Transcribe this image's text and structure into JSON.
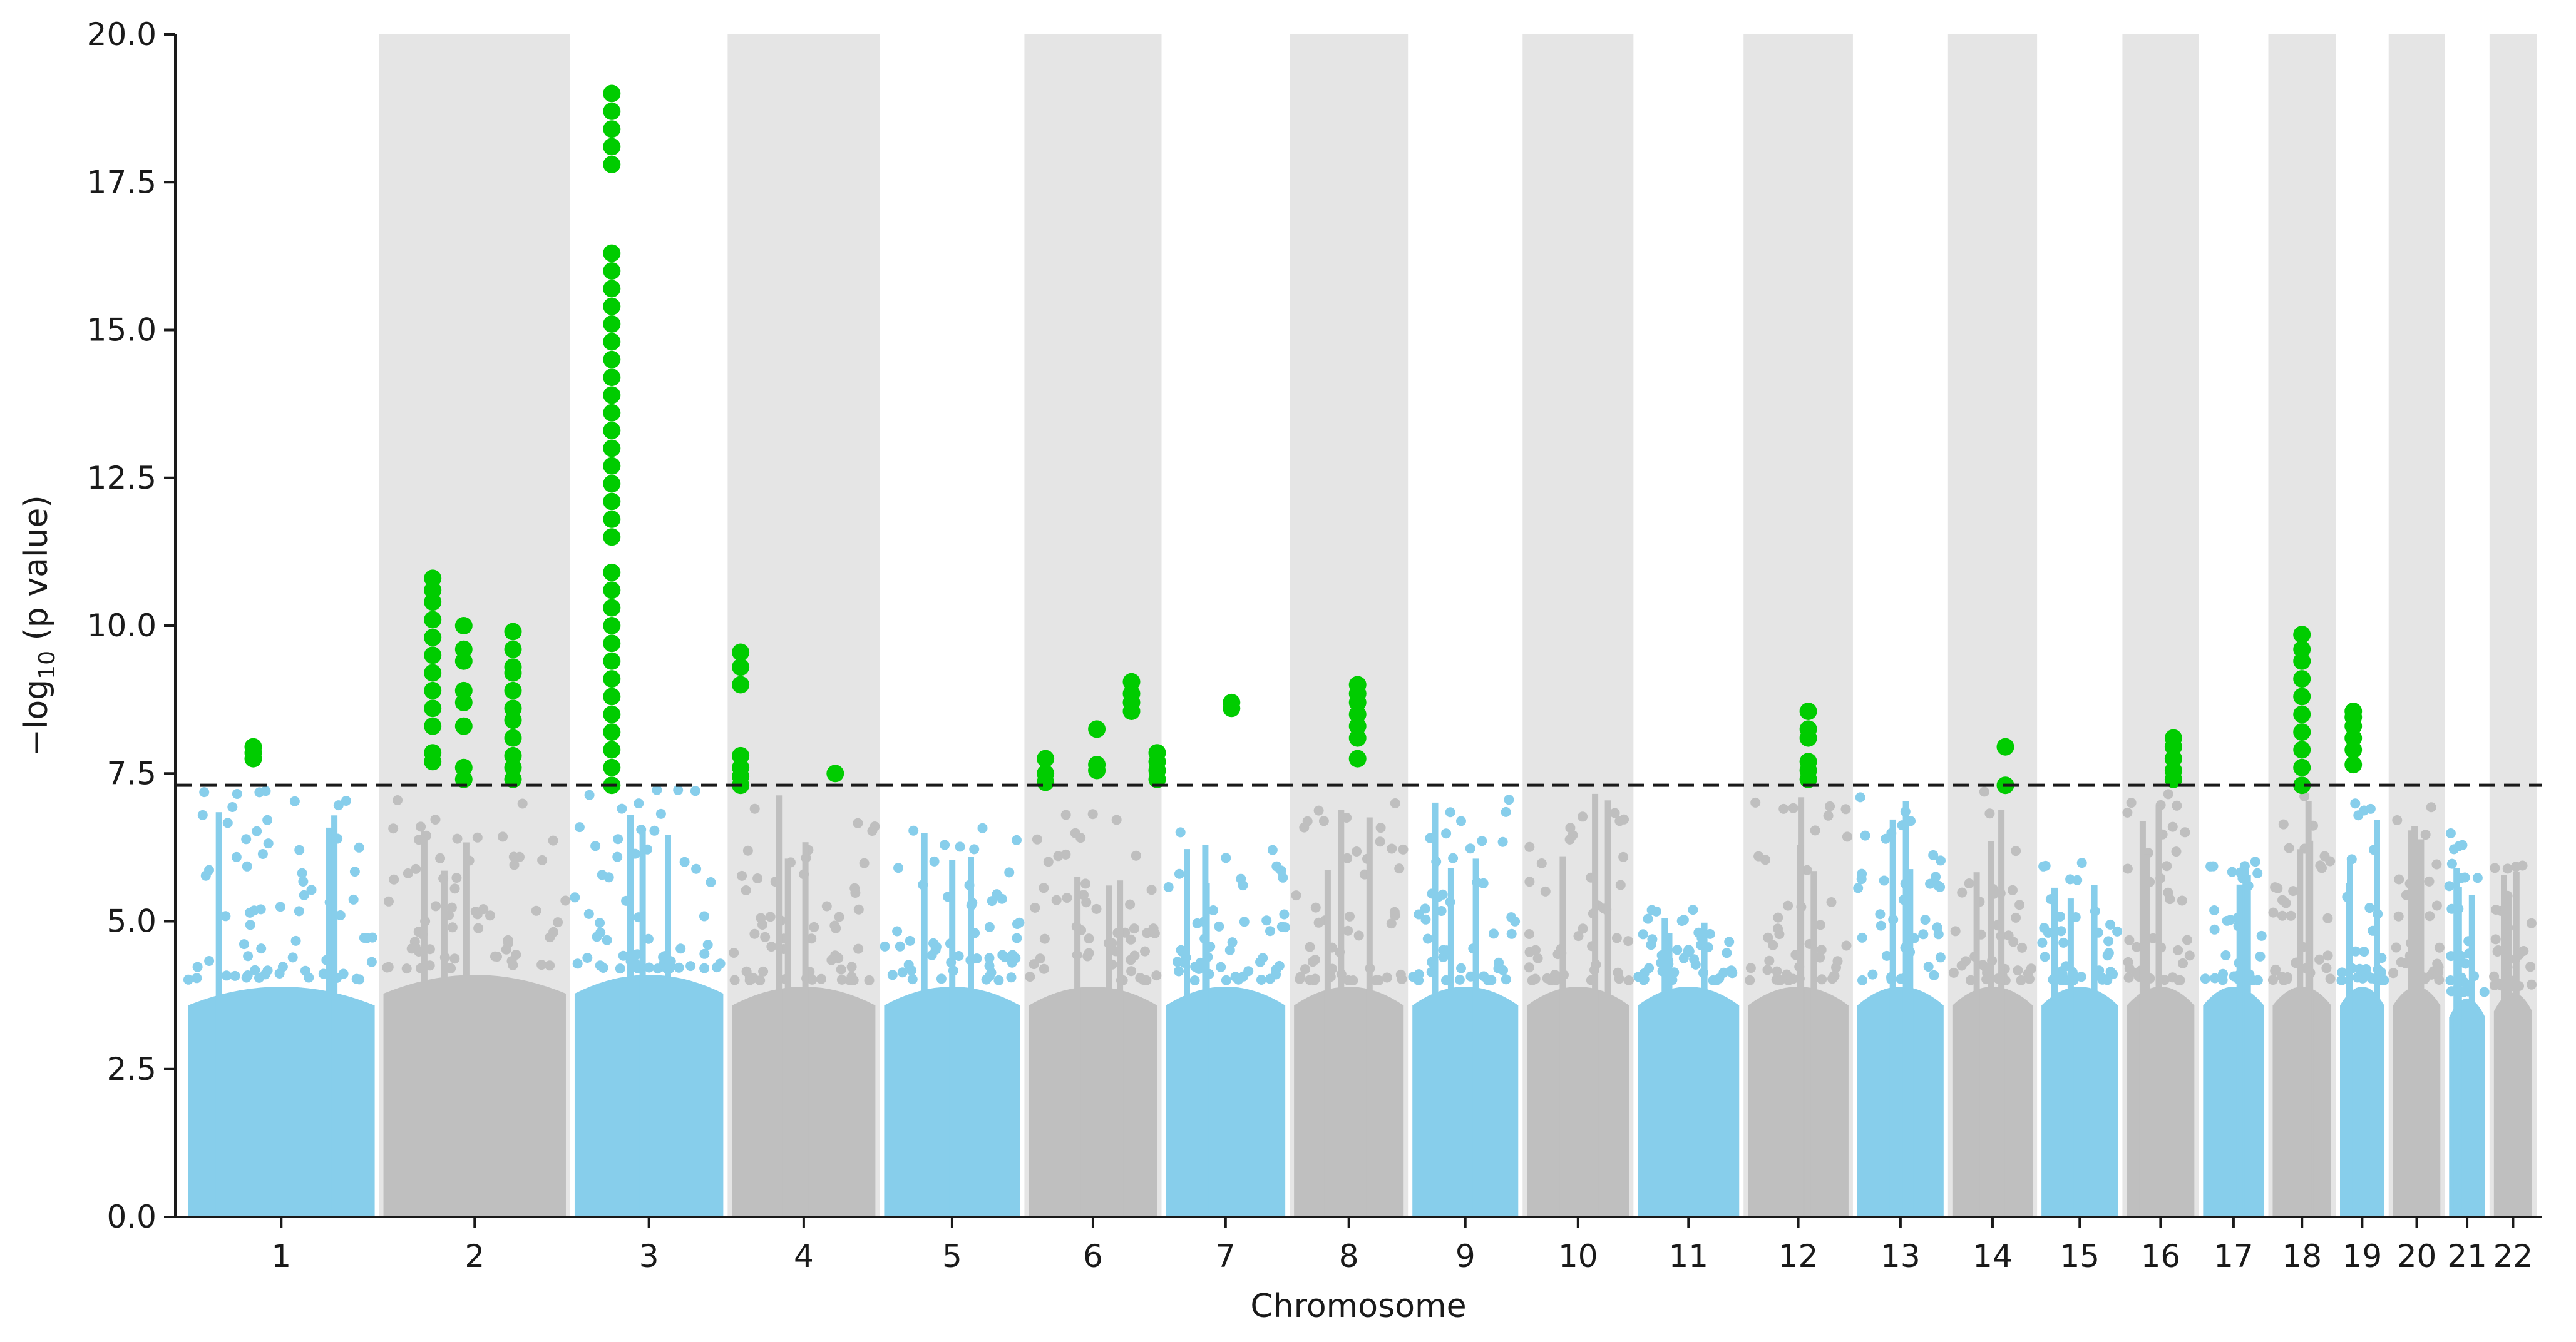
{
  "chart_data": {
    "type": "scatter",
    "subtype": "manhattan",
    "title": "",
    "xlabel": "Chromosome",
    "ylabel": "−log₁₀ (p value)",
    "ylim": [
      0,
      20
    ],
    "yticks": [
      "0.0",
      "2.5",
      "5.0",
      "7.5",
      "10.0",
      "12.5",
      "15.0",
      "17.5",
      "20.0"
    ],
    "grid": false,
    "legend": "none",
    "significance_threshold": 7.3,
    "threshold_style": "dashed black line",
    "colors": {
      "odd_chromosome": "#87ceeb",
      "even_chromosome": "#bfbfbf",
      "significant": "#00cc00",
      "even_band": "#e5e5e5",
      "threshold": "#1a1a1a"
    },
    "chromosomes": [
      {
        "label": "1",
        "length": 249,
        "bulk_max": 4.0,
        "peak_max": 7.3,
        "hits": [
          {
            "pos": 0.35,
            "values": [
              7.75,
              7.85,
              7.95
            ]
          }
        ]
      },
      {
        "label": "2",
        "length": 243,
        "bulk_max": 4.2,
        "peak_max": 7.2,
        "hits": [
          {
            "pos": 0.27,
            "values": [
              7.7,
              7.85,
              8.3,
              8.6,
              8.9,
              9.2,
              9.5,
              9.8,
              10.1,
              10.4,
              10.6,
              10.8
            ]
          },
          {
            "pos": 0.44,
            "values": [
              7.4,
              7.6,
              8.3,
              8.7,
              8.9,
              9.4,
              9.6,
              10.0
            ]
          },
          {
            "pos": 0.71,
            "values": [
              7.4,
              7.6,
              7.8,
              8.1,
              8.4,
              8.6,
              8.9,
              9.2,
              9.3,
              9.6,
              9.9
            ]
          }
        ]
      },
      {
        "label": "3",
        "length": 198,
        "bulk_max": 4.2,
        "peak_max": 7.3,
        "hits": [
          {
            "pos": 0.25,
            "values": [
              7.3,
              7.6,
              7.9,
              8.2,
              8.5,
              8.8,
              9.1,
              9.4,
              9.7,
              10.0,
              10.3,
              10.6,
              10.9,
              11.5,
              11.8,
              12.1,
              12.4,
              12.7,
              13.0,
              13.3,
              13.6,
              13.9,
              14.2,
              14.5,
              14.8,
              15.1,
              15.4,
              15.7,
              16.0,
              16.3,
              17.8,
              18.1,
              18.4,
              18.7,
              19.0
            ]
          }
        ]
      },
      {
        "label": "4",
        "length": 191,
        "bulk_max": 4.0,
        "peak_max": 7.2,
        "hits": [
          {
            "pos": 0.06,
            "values": [
              7.3,
              7.45,
              7.6,
              7.8,
              9.0,
              9.3,
              9.55
            ]
          },
          {
            "pos": 0.72,
            "values": [
              7.5
            ]
          }
        ]
      },
      {
        "label": "5",
        "length": 181,
        "bulk_max": 4.0,
        "peak_max": 6.6,
        "hits": []
      },
      {
        "label": "6",
        "length": 171,
        "bulk_max": 4.0,
        "peak_max": 6.9,
        "hits": [
          {
            "pos": 0.13,
            "values": [
              7.35,
              7.5,
              7.75
            ]
          },
          {
            "pos": 0.53,
            "values": [
              7.55,
              7.65,
              8.25
            ]
          },
          {
            "pos": 0.8,
            "values": [
              8.55,
              8.7,
              8.85,
              9.05
            ]
          },
          {
            "pos": 1.0,
            "values": [
              7.4,
              7.55,
              7.7,
              7.85
            ]
          }
        ]
      },
      {
        "label": "7",
        "length": 159,
        "bulk_max": 4.0,
        "peak_max": 6.6,
        "hits": [
          {
            "pos": 0.55,
            "values": [
              8.6,
              8.7
            ]
          }
        ]
      },
      {
        "label": "8",
        "length": 146,
        "bulk_max": 4.0,
        "peak_max": 7.0,
        "hits": [
          {
            "pos": 0.58,
            "values": [
              7.75,
              8.1,
              8.3,
              8.5,
              8.7,
              8.85,
              9.0
            ]
          }
        ]
      },
      {
        "label": "9",
        "length": 141,
        "bulk_max": 4.0,
        "peak_max": 7.1,
        "hits": []
      },
      {
        "label": "10",
        "length": 136,
        "bulk_max": 4.0,
        "peak_max": 7.2,
        "hits": []
      },
      {
        "label": "11",
        "length": 135,
        "bulk_max": 4.0,
        "peak_max": 5.2,
        "hits": []
      },
      {
        "label": "12",
        "length": 134,
        "bulk_max": 4.0,
        "peak_max": 7.2,
        "hits": [
          {
            "pos": 0.6,
            "values": [
              7.4,
              7.55,
              7.7,
              8.1,
              8.25,
              8.55
            ]
          }
        ]
      },
      {
        "label": "13",
        "length": 115,
        "bulk_max": 4.0,
        "peak_max": 7.1,
        "hits": []
      },
      {
        "label": "14",
        "length": 107,
        "bulk_max": 4.0,
        "peak_max": 7.2,
        "hits": [
          {
            "pos": 0.66,
            "values": [
              7.3,
              7.95
            ]
          }
        ]
      },
      {
        "label": "15",
        "length": 102,
        "bulk_max": 4.0,
        "peak_max": 6.0,
        "hits": []
      },
      {
        "label": "16",
        "length": 90,
        "bulk_max": 4.0,
        "peak_max": 7.2,
        "hits": [
          {
            "pos": 0.69,
            "values": [
              7.4,
              7.55,
              7.75,
              7.95,
              8.1
            ]
          }
        ]
      },
      {
        "label": "17",
        "length": 81,
        "bulk_max": 4.0,
        "peak_max": 6.3,
        "hits": []
      },
      {
        "label": "18",
        "length": 78,
        "bulk_max": 4.0,
        "peak_max": 7.2,
        "hits": [
          {
            "pos": 0.5,
            "values": [
              7.3,
              7.6,
              7.9,
              8.2,
              8.5,
              8.8,
              9.1,
              9.4,
              9.6,
              9.85
            ]
          }
        ]
      },
      {
        "label": "19",
        "length": 59,
        "bulk_max": 4.0,
        "peak_max": 7.0,
        "hits": [
          {
            "pos": 0.3,
            "values": [
              7.65,
              7.9,
              8.1,
              8.3,
              8.45,
              8.55
            ]
          }
        ]
      },
      {
        "label": "20",
        "length": 63,
        "bulk_max": 4.0,
        "peak_max": 7.1,
        "hits": []
      },
      {
        "label": "21",
        "length": 48,
        "bulk_max": 3.8,
        "peak_max": 6.5,
        "hits": []
      },
      {
        "label": "22",
        "length": 51,
        "bulk_max": 3.9,
        "peak_max": 6.1,
        "hits": []
      }
    ]
  }
}
